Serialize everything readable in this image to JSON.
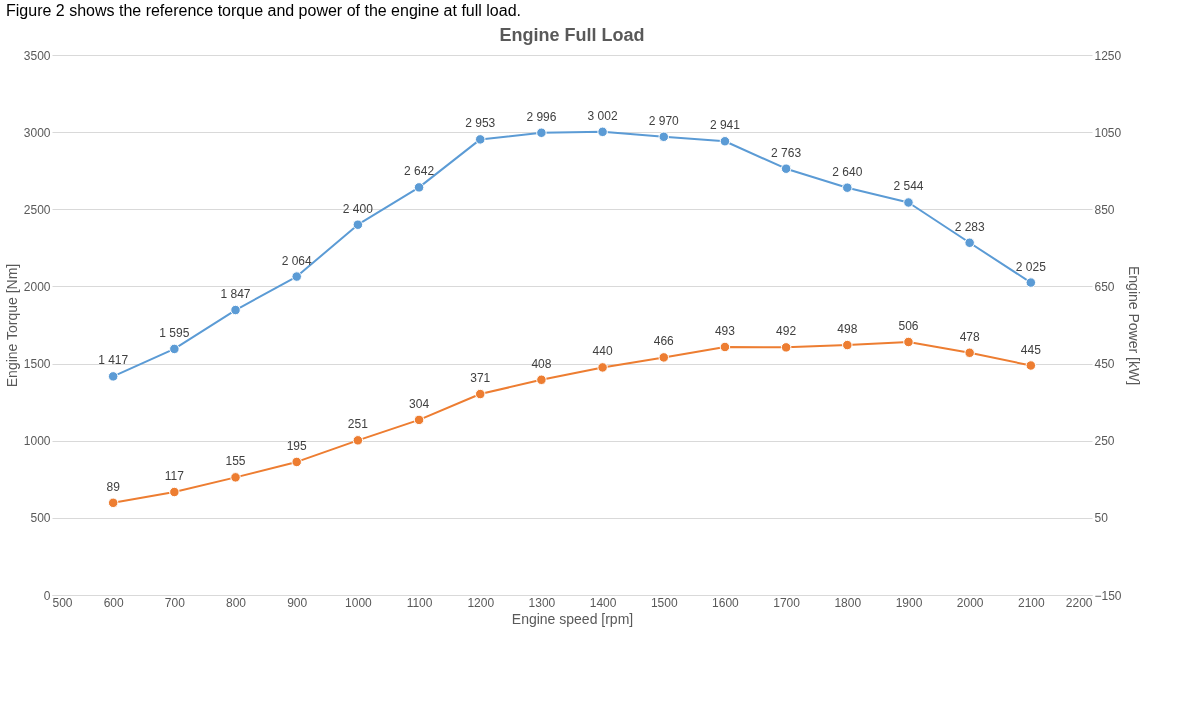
{
  "chart_data": {
    "type": "line",
    "title": "Engine Full Load",
    "xlabel": "Engine speed [rpm]",
    "ylabel": "Engine Torque [Nm]",
    "y2label": "Engine Power [kW]",
    "annotations": [
      "Figure 2 shows the reference torque and power of the engine at full load."
    ],
    "x": [
      600,
      700,
      800,
      900,
      1000,
      1100,
      1200,
      1300,
      1400,
      1500,
      1600,
      1700,
      1800,
      1900,
      2000,
      2100
    ],
    "xlim": [
      500,
      2200
    ],
    "xticks": [
      500,
      600,
      700,
      800,
      900,
      1000,
      1100,
      1200,
      1300,
      1400,
      1500,
      1600,
      1700,
      1800,
      1900,
      2000,
      2100,
      2200
    ],
    "ylim": [
      0,
      3500
    ],
    "yticks": [
      0,
      500,
      1000,
      1500,
      2000,
      2500,
      3000,
      3500
    ],
    "y2lim": [
      -150,
      1250
    ],
    "y2ticks": [
      -150,
      50,
      250,
      450,
      650,
      850,
      1050,
      1250
    ],
    "grid": "y",
    "marker": "circle",
    "line_style": "solid",
    "series": [
      {
        "color": "#5b9bd5",
        "values": [
          1417,
          1595,
          1847,
          2064,
          2400,
          2642,
          2953,
          2996,
          3002,
          2970,
          2941,
          2763,
          2640,
          2544,
          2283,
          2025
        ],
        "value_labels": [
          "1 417",
          "1 595",
          "1 847",
          "2 064",
          "2 400",
          "2 642",
          "2 953",
          "2 996",
          "3 002",
          "2 970",
          "2 941",
          "2 763",
          "2 640",
          "2 544",
          "2 283",
          "2 025"
        ]
      },
      {
        "color": "#ed7d31",
        "axis": "y2",
        "values": [
          89,
          117,
          155,
          195,
          251,
          304,
          371,
          408,
          440,
          466,
          493,
          492,
          498,
          506,
          478,
          445
        ],
        "value_labels": [
          "89",
          "117",
          "155",
          "195",
          "251",
          "304",
          "371",
          "408",
          "440",
          "466",
          "493",
          "492",
          "498",
          "506",
          "478",
          "445"
        ]
      }
    ]
  }
}
